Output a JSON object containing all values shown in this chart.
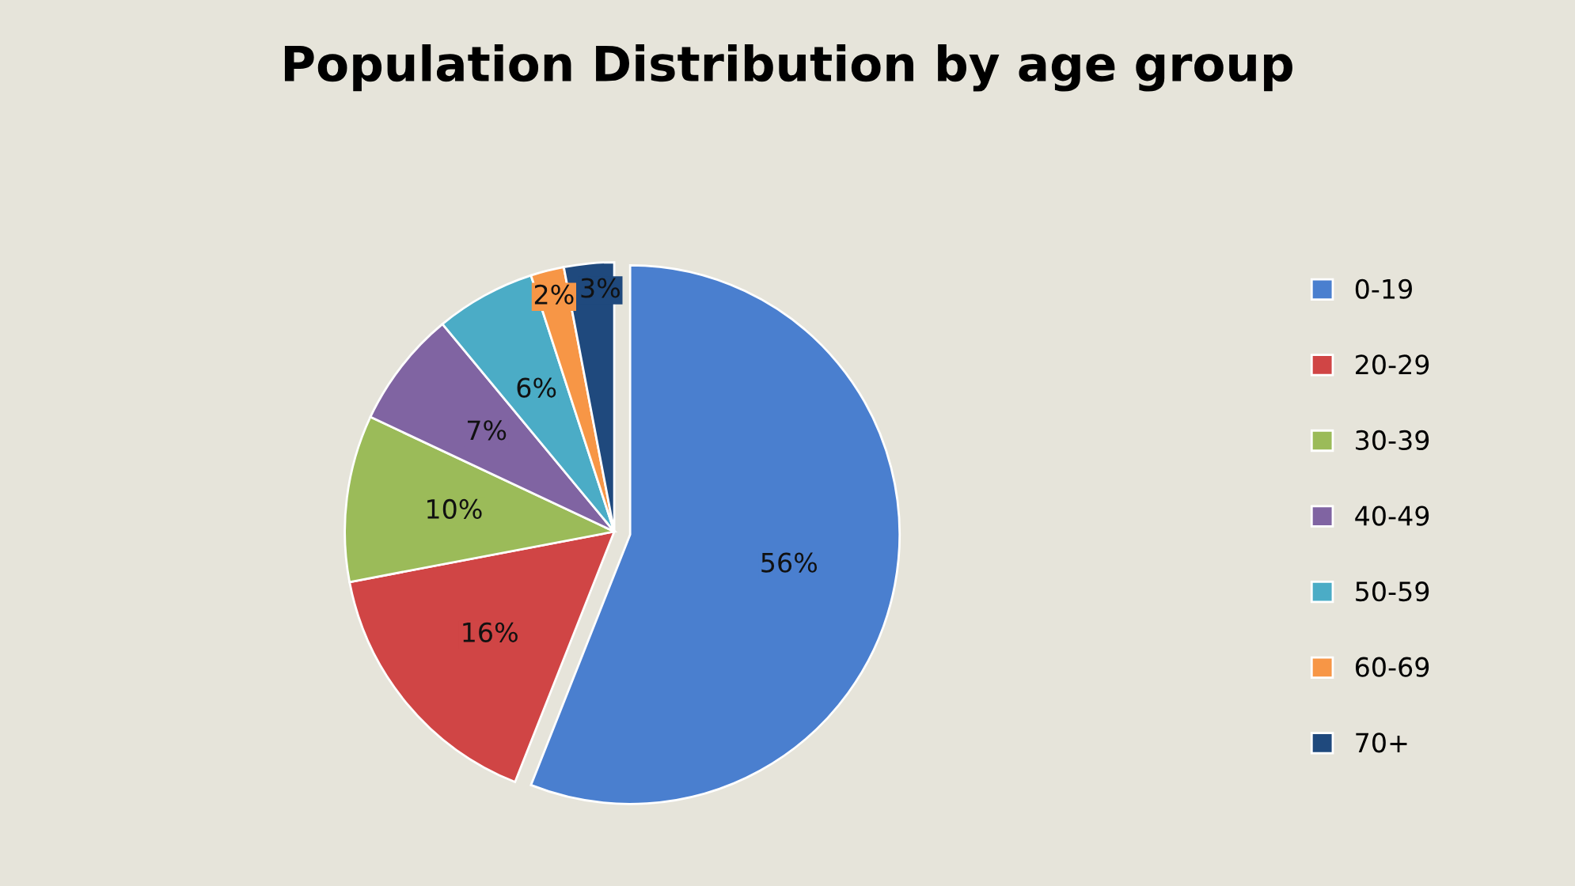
{
  "chart_data": {
    "type": "pie",
    "title": "Population Distribution by age group",
    "categories": [
      "0-19",
      "20-29",
      "30-39",
      "40-49",
      "50-59",
      "60-69",
      "70+"
    ],
    "values": [
      56,
      16,
      10,
      7,
      6,
      2,
      3
    ],
    "colors": [
      "#4a7fcf",
      "#d04545",
      "#9bbb59",
      "#8064a2",
      "#4bacc6",
      "#f79646",
      "#1f497d"
    ],
    "value_labels": [
      "56%",
      "16%",
      "10%",
      "7%",
      "6%",
      "2%",
      "3%"
    ],
    "legend": "right"
  }
}
